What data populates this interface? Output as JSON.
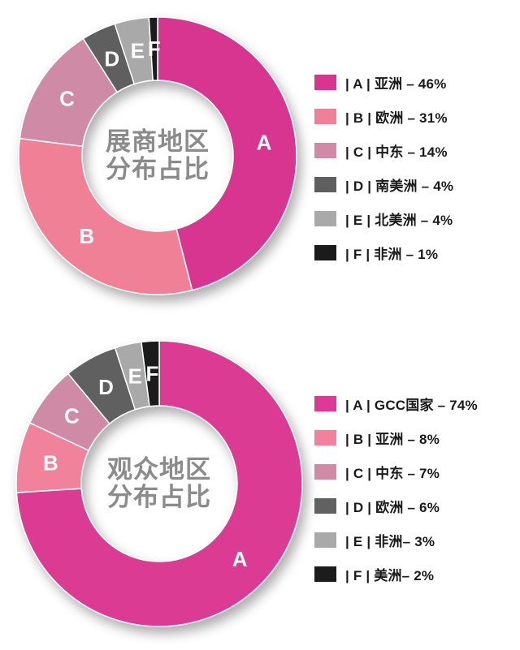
{
  "chart_data": [
    {
      "type": "pie",
      "subtype": "donut",
      "title": "展商地区分布占比",
      "center_title_lines": [
        "展商地区",
        "分布占比"
      ],
      "legend_position": "right",
      "direction": "clockwise",
      "start_angle_deg": 0,
      "categories": [
        "亚洲",
        "欧洲",
        "中东",
        "南美洲",
        "北美洲",
        "非洲"
      ],
      "values": [
        46,
        31,
        14,
        4,
        4,
        1
      ],
      "center_text_color": "#8b8b8b",
      "slice_label_color": "#ffffff",
      "segments": [
        {
          "letter": "A",
          "label": "亚洲",
          "percent": 46,
          "color": "#d83590",
          "legend_text": "亚洲 – 46%"
        },
        {
          "letter": "B",
          "label": "欧洲",
          "percent": 31,
          "color": "#ef8095",
          "legend_text": "欧洲 – 31%"
        },
        {
          "letter": "C",
          "label": "中东",
          "percent": 14,
          "color": "#cf8ba6",
          "legend_text": "中东 – 14%"
        },
        {
          "letter": "D",
          "label": "南美洲",
          "percent": 4,
          "color": "#5f5f5f",
          "legend_text": "南美洲 – 4%"
        },
        {
          "letter": "E",
          "label": "北美洲",
          "percent": 4,
          "color": "#a9a9a9",
          "legend_text": "北美洲 – 4%"
        },
        {
          "letter": "F",
          "label": "非洲",
          "percent": 1,
          "color": "#1b1b1b",
          "legend_text": "非洲 – 1%"
        }
      ]
    },
    {
      "type": "pie",
      "subtype": "donut",
      "title": "观众地区分布占比",
      "center_title_lines": [
        "观众地区",
        "分布占比"
      ],
      "legend_position": "right",
      "direction": "clockwise",
      "start_angle_deg": 0,
      "categories": [
        "GCC国家",
        "亚洲",
        "中东",
        "欧洲",
        "非洲",
        "美洲"
      ],
      "values": [
        74,
        8,
        7,
        6,
        3,
        2
      ],
      "center_text_color": "#8b8b8b",
      "slice_label_color": "#ffffff",
      "segments": [
        {
          "letter": "A",
          "label": "GCC国家",
          "percent": 74,
          "color": "#dc3a94",
          "legend_text": "GCC国家 – 74%"
        },
        {
          "letter": "B",
          "label": "亚洲",
          "percent": 8,
          "color": "#f0829b",
          "legend_text": "亚洲 – 8%"
        },
        {
          "letter": "C",
          "label": "中东",
          "percent": 7,
          "color": "#cf8ba6",
          "legend_text": "中东 – 7%"
        },
        {
          "letter": "D",
          "label": "欧洲",
          "percent": 6,
          "color": "#616161",
          "legend_text": "欧洲 – 6%"
        },
        {
          "letter": "E",
          "label": "非洲",
          "percent": 3,
          "color": "#a9a9a9",
          "legend_text": "非洲– 3%"
        },
        {
          "letter": "F",
          "label": "美洲",
          "percent": 2,
          "color": "#1c1c1c",
          "legend_text": "美洲– 2%"
        }
      ]
    }
  ]
}
